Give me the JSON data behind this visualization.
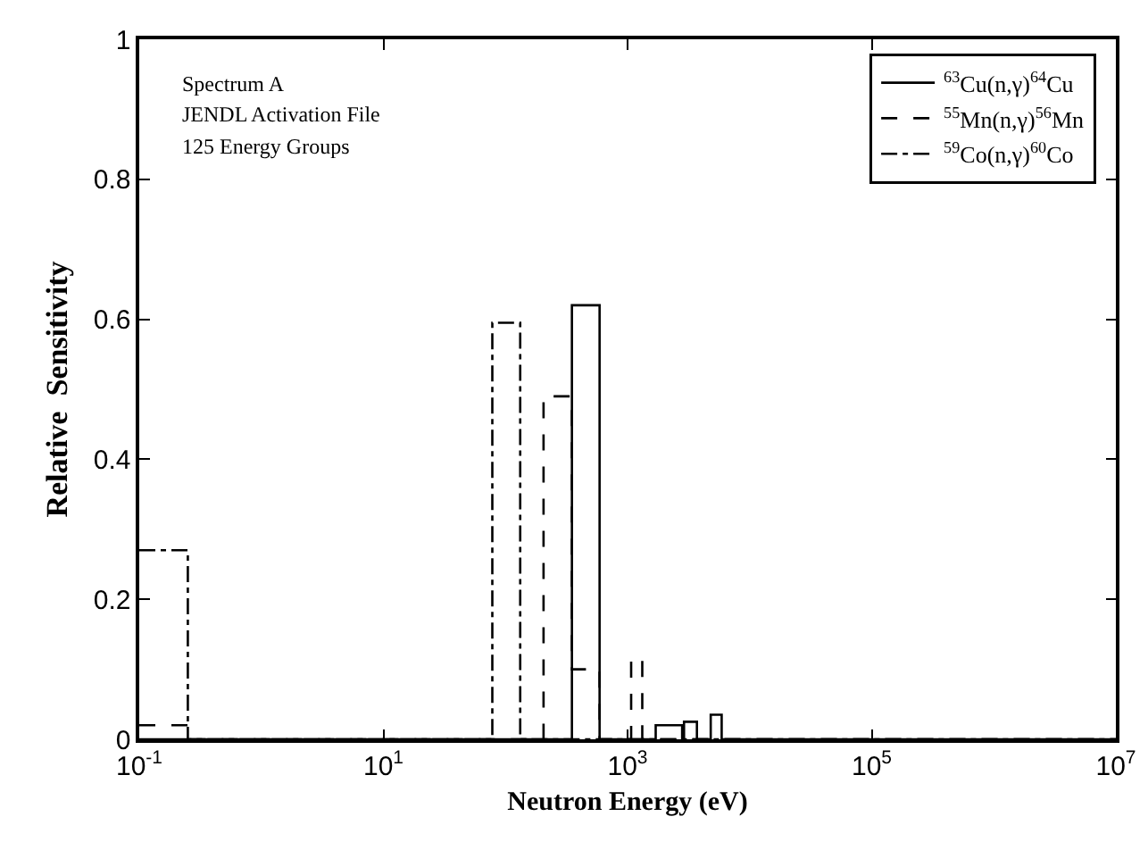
{
  "chart_data": {
    "type": "step",
    "xlabel": "Neutron Energy (eV)",
    "ylabel": "Relative  Sensitivity",
    "annotations": [
      "Spectrum A",
      "JENDL Activation File",
      "125 Energy Groups"
    ],
    "log": "x",
    "xlim": [
      0.1,
      10000000
    ],
    "xticks": [
      {
        "value": 0.1,
        "label": "10$^{-1}$"
      },
      {
        "value": 10,
        "label": "10$^{1}$"
      },
      {
        "value": 1000,
        "label": "10$^{3}$"
      },
      {
        "value": 100000,
        "label": "10$^{5}$"
      },
      {
        "value": 10000000,
        "label": "10$^{7}$"
      }
    ],
    "ylim": [
      0,
      1
    ],
    "yticks": [
      0,
      0.2,
      0.4,
      0.6,
      0.8,
      1
    ],
    "grid": false,
    "legend": "top right",
    "marker": "none",
    "series": [
      {
        "name": "$^{63}$Cu(n,γ)$^{64}$Cu",
        "color": "#000000",
        "line_style": "solid",
        "x": [
          0.1,
          350,
          590,
          1700,
          2800,
          2900,
          3700,
          4800,
          5900,
          10000000
        ],
        "values": [
          0,
          0.62,
          0,
          0.02,
          0,
          0.025,
          0,
          0.035,
          0,
          0
        ]
      },
      {
        "name": "$^{55}$Mn(n,γ)$^{56}$Mn",
        "color": "#000000",
        "line_style": "dashed",
        "x": [
          0.1,
          0.25,
          205,
          350,
          590,
          1070,
          1320,
          10000000
        ],
        "values": [
          0.02,
          0,
          0.49,
          0.1,
          0,
          0.115,
          0,
          0
        ]
      },
      {
        "name": "$^{59}$Co(n,γ)$^{60}$Co",
        "color": "#000000",
        "line_style": "dashdot",
        "x": [
          0.1,
          0.25,
          78,
          132,
          10000000
        ],
        "values": [
          0.27,
          0,
          0.595,
          0,
          0
        ]
      }
    ]
  }
}
